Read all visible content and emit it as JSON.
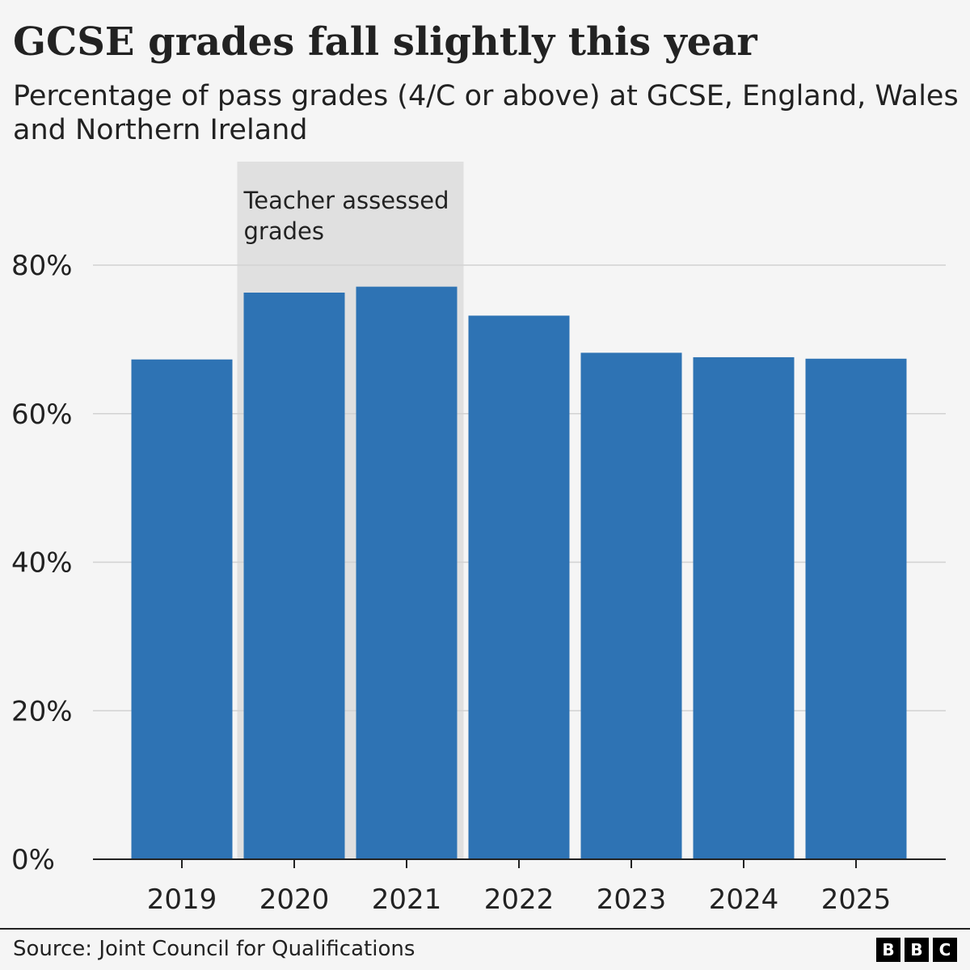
{
  "header": {
    "title": "GCSE grades fall slightly this year",
    "subtitle": "Percentage of pass grades (4/C or above) at GCSE, England, Wales and Northern Ireland"
  },
  "chart_data": {
    "type": "bar",
    "title": "GCSE grades fall slightly this year",
    "subtitle": "Percentage of pass grades (4/C or above) at GCSE, England, Wales and Northern Ireland",
    "categories": [
      "2019",
      "2020",
      "2021",
      "2022",
      "2023",
      "2024",
      "2025"
    ],
    "values": [
      67.3,
      76.3,
      77.1,
      73.2,
      68.2,
      67.6,
      67.4
    ],
    "ylim": [
      0,
      80
    ],
    "yticks": [
      0,
      20,
      40,
      60,
      80
    ],
    "ytick_labels": [
      "0%",
      "20%",
      "40%",
      "60%",
      "80%"
    ],
    "xlabel": "",
    "ylabel": "",
    "grid": true,
    "legend": "none",
    "bar_color": "#2e73b4",
    "annotation": {
      "text": "Teacher assessed grades",
      "text_lines": [
        "Teacher assessed",
        "grades"
      ],
      "categories": [
        "2020",
        "2021"
      ],
      "color": "#e0e0e0"
    }
  },
  "footer": {
    "source": "Source: Joint Council for Qualifications",
    "logo_letters": [
      "B",
      "B",
      "C"
    ]
  },
  "colors": {
    "background": "#f5f5f5",
    "bar": "#2e73b4",
    "grid": "#d2d2d2",
    "axis": "#222222",
    "highlight": "#e0e0e0"
  }
}
